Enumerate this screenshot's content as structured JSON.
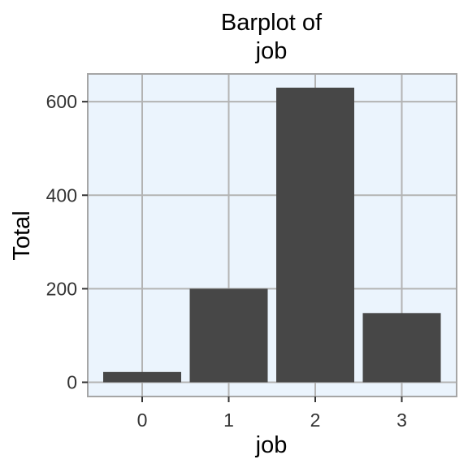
{
  "chart_data": {
    "type": "bar",
    "title_lines": [
      "Barplot of",
      "job"
    ],
    "xlabel": "job",
    "ylabel": "Total",
    "categories": [
      "0",
      "1",
      "2",
      "3"
    ],
    "values": [
      22,
      200,
      630,
      148
    ],
    "ylim": [
      0,
      660
    ],
    "yticks": [
      0,
      200,
      400,
      600
    ],
    "grid": true,
    "legend": "none",
    "colors": {
      "bar": "#474747",
      "panel_background": "#ebf4fd",
      "grid": "#b3b3b3",
      "panel_border": "#a6a6a6"
    }
  }
}
